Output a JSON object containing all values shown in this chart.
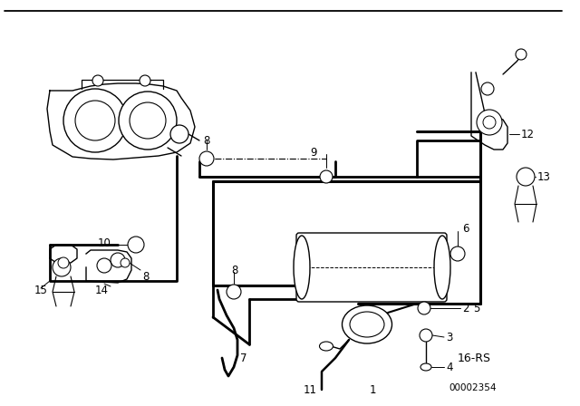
{
  "bg_color": "#ffffff",
  "line_color": "#000000",
  "diagram_id": "16-RS",
  "part_number": "00002354"
}
